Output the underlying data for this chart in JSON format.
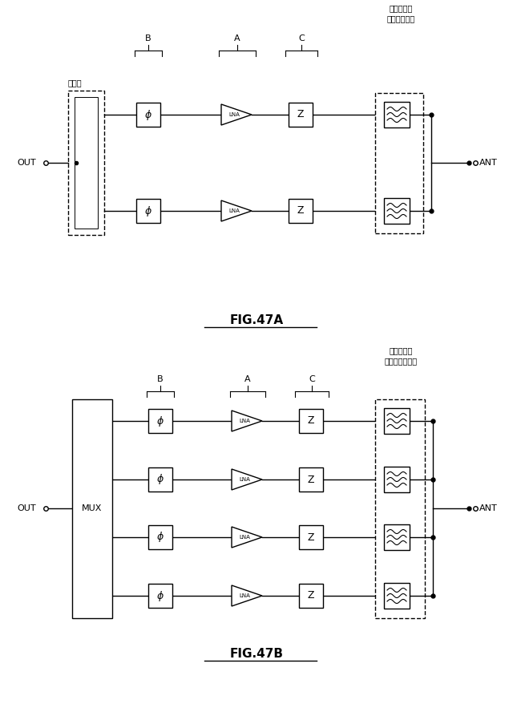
{
  "bg_color": "#ffffff",
  "fig47a": {
    "title": "FIG.47A",
    "label_B": "B",
    "label_A": "A",
    "label_C": "C",
    "label_filter": "フィルタ／\nダイプレクサ",
    "label_combiner": "結合器",
    "label_out": "OUT",
    "label_ant": "ANT"
  },
  "fig47b": {
    "title": "FIG.47B",
    "label_B": "B",
    "label_A": "A",
    "label_C": "C",
    "label_filter": "フィルタ／\nマルチプレクサ",
    "label_mux": "MUX",
    "label_out": "OUT",
    "label_ant": "ANT"
  }
}
